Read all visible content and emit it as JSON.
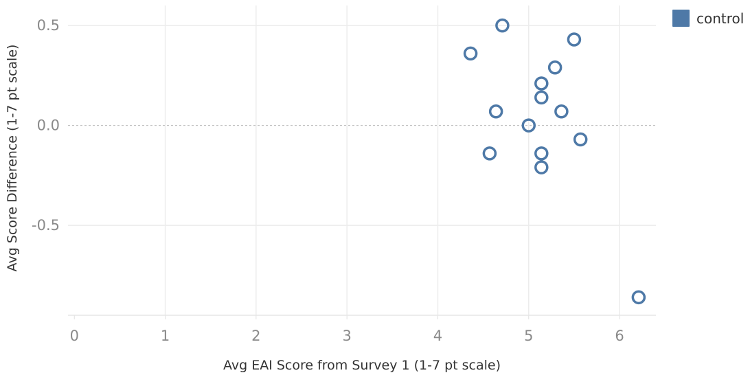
{
  "chart_data": {
    "type": "scatter",
    "xlabel": "Avg EAI Score from Survey 1 (1-7 pt scale)",
    "ylabel": "Avg Score Difference (1-7 pt scale)",
    "xlim": [
      -0.07,
      6.4
    ],
    "ylim": [
      -0.95,
      0.6
    ],
    "x_ticks": [
      0,
      1,
      2,
      3,
      4,
      5,
      6
    ],
    "x_tick_labels": [
      "0",
      "1",
      "2",
      "3",
      "4",
      "5",
      "6"
    ],
    "y_ticks": [
      0.5,
      0.0,
      -0.5
    ],
    "y_tick_labels": [
      "0.5",
      "0.0",
      "-0.5"
    ],
    "reference_line_y": 0,
    "grid": true,
    "legend_position": "top-right",
    "series": [
      {
        "name": "control",
        "color": "#4e79a7",
        "marker": "open-circle",
        "points": [
          {
            "x": 4.71,
            "y": 0.5
          },
          {
            "x": 5.5,
            "y": 0.43
          },
          {
            "x": 4.36,
            "y": 0.36
          },
          {
            "x": 5.29,
            "y": 0.29
          },
          {
            "x": 5.14,
            "y": 0.21
          },
          {
            "x": 5.14,
            "y": 0.14
          },
          {
            "x": 4.64,
            "y": 0.07
          },
          {
            "x": 5.36,
            "y": 0.07
          },
          {
            "x": 5.0,
            "y": 0.0
          },
          {
            "x": 5.57,
            "y": -0.07
          },
          {
            "x": 4.57,
            "y": -0.14
          },
          {
            "x": 5.14,
            "y": -0.14
          },
          {
            "x": 5.14,
            "y": -0.21
          },
          {
            "x": 6.21,
            "y": -0.86
          }
        ]
      }
    ]
  }
}
